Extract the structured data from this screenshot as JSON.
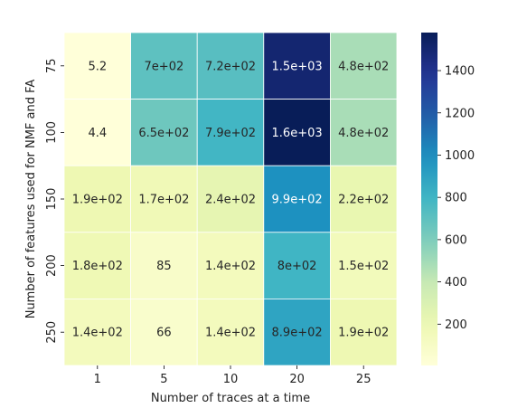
{
  "chart_data": {
    "type": "heatmap",
    "title": "",
    "xlabel": "Number of traces at a time",
    "ylabel": "Number of features used for NMF and FA",
    "x_categories": [
      "1",
      "5",
      "10",
      "20",
      "25"
    ],
    "y_categories": [
      "75",
      "100",
      "150",
      "200",
      "250"
    ],
    "values": [
      [
        5.2,
        700,
        720,
        1500,
        480
      ],
      [
        4.4,
        650,
        790,
        1600,
        480
      ],
      [
        190,
        170,
        240,
        990,
        220
      ],
      [
        180,
        85,
        140,
        800,
        150
      ],
      [
        140,
        66,
        140,
        890,
        190
      ]
    ],
    "cell_labels": [
      [
        "5.2",
        "7e+02",
        "7.2e+02",
        "1.5e+03",
        "4.8e+02"
      ],
      [
        "4.4",
        "6.5e+02",
        "7.9e+02",
        "1.6e+03",
        "4.8e+02"
      ],
      [
        "1.9e+02",
        "1.7e+02",
        "2.4e+02",
        "9.9e+02",
        "2.2e+02"
      ],
      [
        "1.8e+02",
        "85",
        "1.4e+02",
        "8e+02",
        "1.5e+02"
      ],
      [
        "1.4e+02",
        "66",
        "1.4e+02",
        "8.9e+02",
        "1.9e+02"
      ]
    ],
    "colormap": "YlGnBu",
    "vmin": 4.4,
    "vmax": 1580,
    "colorbar_ticks": [
      200,
      400,
      600,
      800,
      1000,
      1200,
      1400
    ],
    "colorbar_tick_labels": [
      "200",
      "400",
      "600",
      "800",
      "1000",
      "1200",
      "1400"
    ],
    "cell_gridlines": "white",
    "legend": "colorbar-right"
  }
}
